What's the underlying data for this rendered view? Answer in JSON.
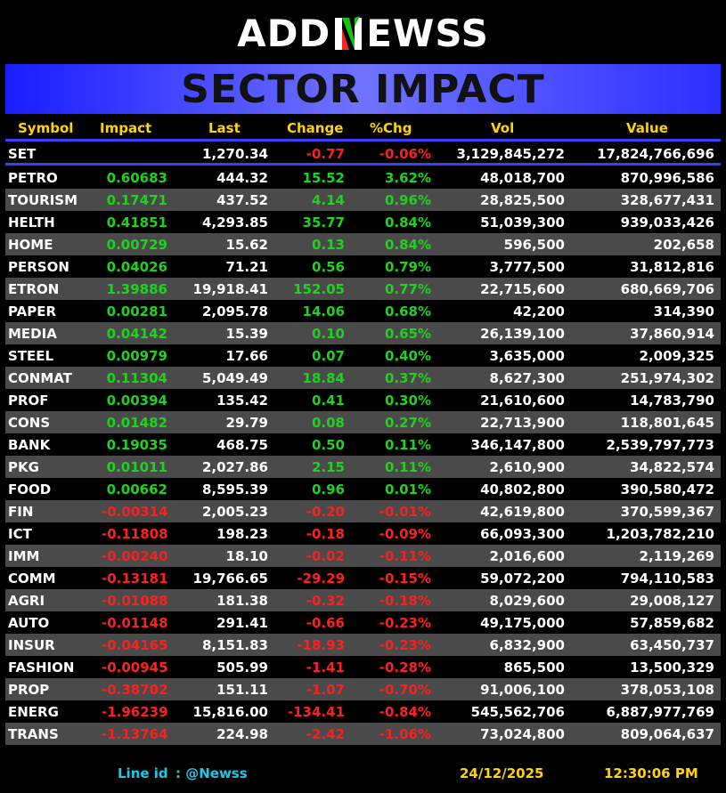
{
  "logo": {
    "left": "ADD",
    "right": "EWSS"
  },
  "banner_title": "SECTOR IMPACT",
  "columns": {
    "symbol": "Symbol",
    "impact": "Impact",
    "last": "Last",
    "change": "Change",
    "pct": "%Chg",
    "vol": "Vol",
    "value": "Value"
  },
  "colors": {
    "positive": "#1ed31e",
    "negative": "#ff1f1f",
    "header": "#ffd500",
    "banner": "#4a4fff",
    "stripe": "#4a4a4a",
    "footer_line": "#1ec8e6",
    "footer_date": "#ffd500"
  },
  "index_row": {
    "symbol": "SET",
    "impact": "",
    "last": "1,270.34",
    "change": "-0.77",
    "pct": "-0.06%",
    "vol": "3,129,845,272",
    "value": "17,824,766,696"
  },
  "rows": [
    {
      "symbol": "PETRO",
      "impact": "0.60683",
      "last": "444.32",
      "change": "15.52",
      "pct": "3.62%",
      "vol": "48,018,700",
      "value": "870,996,586"
    },
    {
      "symbol": "TOURISM",
      "impact": "0.17471",
      "last": "437.52",
      "change": "4.14",
      "pct": "0.96%",
      "vol": "28,825,500",
      "value": "328,677,431"
    },
    {
      "symbol": "HELTH",
      "impact": "0.41851",
      "last": "4,293.85",
      "change": "35.77",
      "pct": "0.84%",
      "vol": "51,039,300",
      "value": "939,033,426"
    },
    {
      "symbol": "HOME",
      "impact": "0.00729",
      "last": "15.62",
      "change": "0.13",
      "pct": "0.84%",
      "vol": "596,500",
      "value": "202,658"
    },
    {
      "symbol": "PERSON",
      "impact": "0.04026",
      "last": "71.21",
      "change": "0.56",
      "pct": "0.79%",
      "vol": "3,777,500",
      "value": "31,812,816"
    },
    {
      "symbol": "ETRON",
      "impact": "1.39886",
      "last": "19,918.41",
      "change": "152.05",
      "pct": "0.77%",
      "vol": "22,715,600",
      "value": "680,669,706"
    },
    {
      "symbol": "PAPER",
      "impact": "0.00281",
      "last": "2,095.78",
      "change": "14.06",
      "pct": "0.68%",
      "vol": "42,200",
      "value": "314,390"
    },
    {
      "symbol": "MEDIA",
      "impact": "0.04142",
      "last": "15.39",
      "change": "0.10",
      "pct": "0.65%",
      "vol": "26,139,100",
      "value": "37,860,914"
    },
    {
      "symbol": "STEEL",
      "impact": "0.00979",
      "last": "17.66",
      "change": "0.07",
      "pct": "0.40%",
      "vol": "3,635,000",
      "value": "2,009,325"
    },
    {
      "symbol": "CONMAT",
      "impact": "0.11304",
      "last": "5,049.49",
      "change": "18.84",
      "pct": "0.37%",
      "vol": "8,627,300",
      "value": "251,974,302"
    },
    {
      "symbol": "PROF",
      "impact": "0.00394",
      "last": "135.42",
      "change": "0.41",
      "pct": "0.30%",
      "vol": "21,610,600",
      "value": "14,783,790"
    },
    {
      "symbol": "CONS",
      "impact": "0.01482",
      "last": "29.79",
      "change": "0.08",
      "pct": "0.27%",
      "vol": "22,713,900",
      "value": "118,801,645"
    },
    {
      "symbol": "BANK",
      "impact": "0.19035",
      "last": "468.75",
      "change": "0.50",
      "pct": "0.11%",
      "vol": "346,147,800",
      "value": "2,539,797,773"
    },
    {
      "symbol": "PKG",
      "impact": "0.01011",
      "last": "2,027.86",
      "change": "2.15",
      "pct": "0.11%",
      "vol": "2,610,900",
      "value": "34,822,574"
    },
    {
      "symbol": "FOOD",
      "impact": "0.00662",
      "last": "8,595.39",
      "change": "0.96",
      "pct": "0.01%",
      "vol": "40,802,800",
      "value": "390,580,472"
    },
    {
      "symbol": "FIN",
      "impact": "-0.00314",
      "last": "2,005.23",
      "change": "-0.20",
      "pct": "-0.01%",
      "vol": "42,619,800",
      "value": "370,599,367"
    },
    {
      "symbol": "ICT",
      "impact": "-0.11808",
      "last": "198.23",
      "change": "-0.18",
      "pct": "-0.09%",
      "vol": "66,093,300",
      "value": "1,203,782,210"
    },
    {
      "symbol": "IMM",
      "impact": "-0.00240",
      "last": "18.10",
      "change": "-0.02",
      "pct": "-0.11%",
      "vol": "2,016,600",
      "value": "2,119,269"
    },
    {
      "symbol": "COMM",
      "impact": "-0.13181",
      "last": "19,766.65",
      "change": "-29.29",
      "pct": "-0.15%",
      "vol": "59,072,200",
      "value": "794,110,583"
    },
    {
      "symbol": "AGRI",
      "impact": "-0.01088",
      "last": "181.38",
      "change": "-0.32",
      "pct": "-0.18%",
      "vol": "8,029,600",
      "value": "29,008,127"
    },
    {
      "symbol": "AUTO",
      "impact": "-0.01148",
      "last": "291.41",
      "change": "-0.66",
      "pct": "-0.23%",
      "vol": "49,175,000",
      "value": "57,859,682"
    },
    {
      "symbol": "INSUR",
      "impact": "-0.04165",
      "last": "8,151.83",
      "change": "-18.93",
      "pct": "-0.23%",
      "vol": "6,832,900",
      "value": "63,450,737"
    },
    {
      "symbol": "FASHION",
      "impact": "-0.00945",
      "last": "505.99",
      "change": "-1.41",
      "pct": "-0.28%",
      "vol": "865,500",
      "value": "13,500,329"
    },
    {
      "symbol": "PROP",
      "impact": "-0.38702",
      "last": "151.11",
      "change": "-1.07",
      "pct": "-0.70%",
      "vol": "91,006,100",
      "value": "378,053,108"
    },
    {
      "symbol": "ENERG",
      "impact": "-1.96239",
      "last": "15,816.00",
      "change": "-134.41",
      "pct": "-0.84%",
      "vol": "545,562,706",
      "value": "6,887,977,769"
    },
    {
      "symbol": "TRANS",
      "impact": "-1.13764",
      "last": "224.98",
      "change": "-2.42",
      "pct": "-1.06%",
      "vol": "73,024,800",
      "value": "809,064,637"
    }
  ],
  "footer": {
    "line_label": "Line id",
    "line_id": ": @Newss",
    "date": "24/12/2025",
    "time": "12:30:06 PM"
  }
}
